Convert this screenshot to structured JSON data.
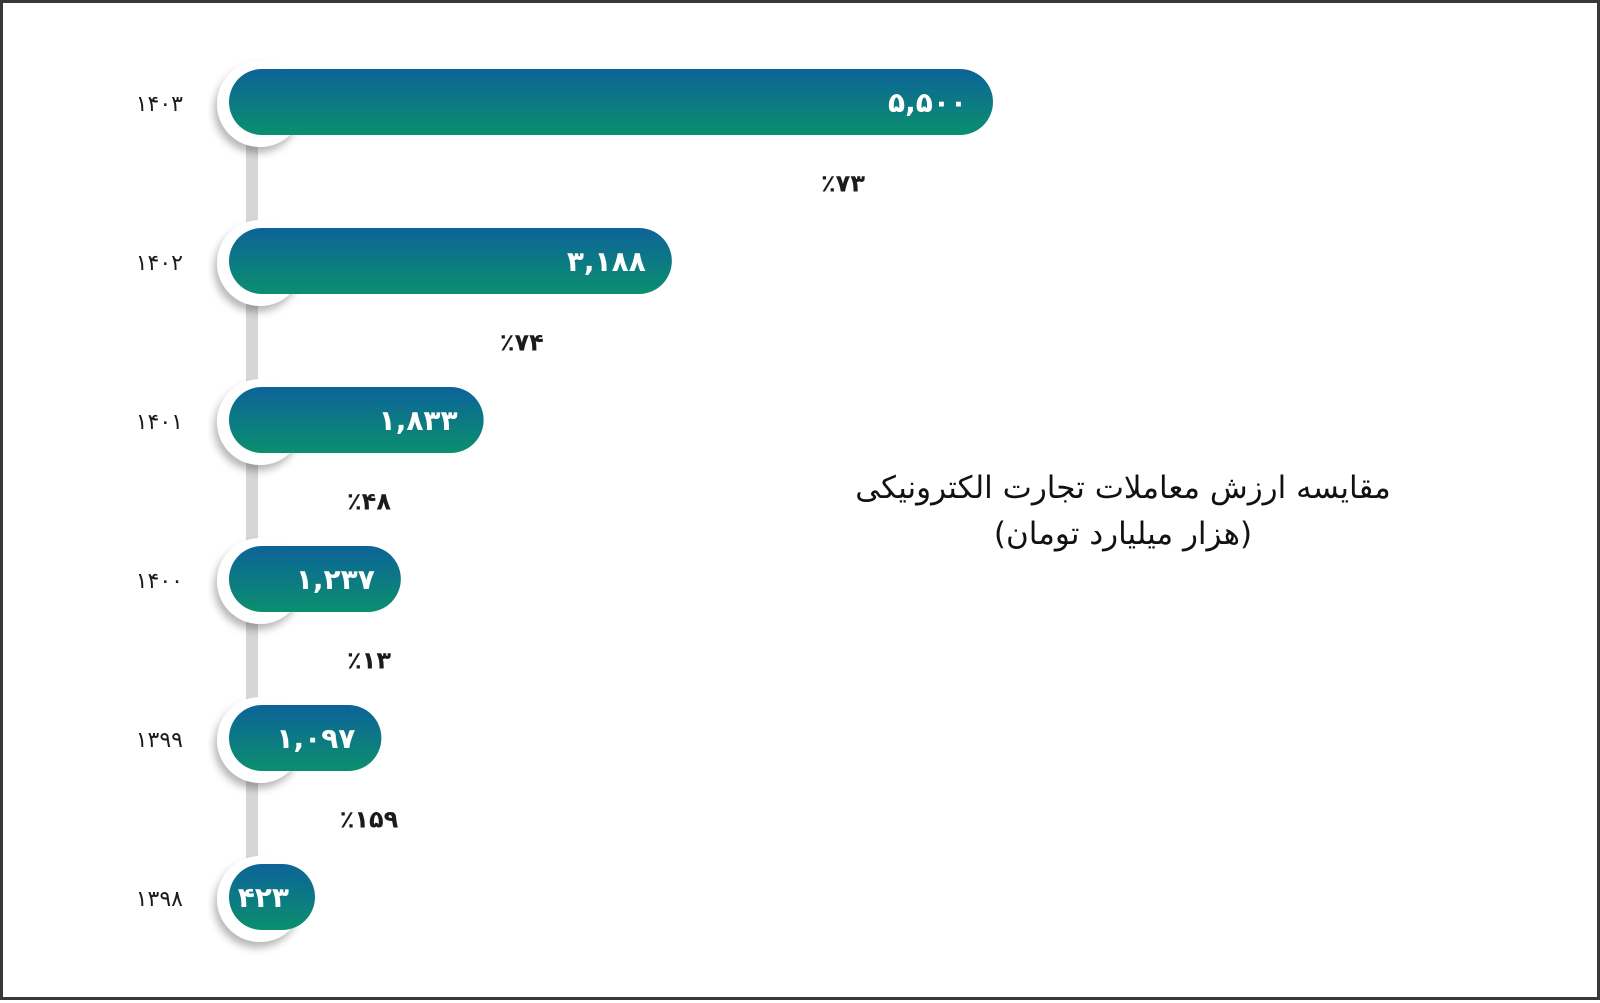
{
  "chart_data": {
    "type": "bar",
    "orientation": "horizontal",
    "title": "مقایسه ارزش معاملات تجارت الکترونیکی",
    "subtitle": "(هزار میلیارد تومان)",
    "categories": [
      "۱۴۰۳",
      "۱۴۰۲",
      "۱۴۰۱",
      "۱۴۰۰",
      "۱۳۹۹",
      "۱۳۹۸"
    ],
    "values": [
      5500,
      3188,
      1833,
      1237,
      1097,
      423
    ],
    "value_labels": [
      "۵,۵۰۰",
      "۳,۱۸۸",
      "۱,۸۳۳",
      "۱,۲۳۷",
      "۱,۰۹۷",
      "۴۲۳"
    ],
    "growth_labels": [
      "٪۷۳",
      "٪۷۴",
      "٪۴۸",
      "٪۱۳",
      "٪۱۵۹"
    ],
    "growth_values": [
      73,
      74,
      48,
      13,
      159
    ],
    "xlim": [
      0,
      5500
    ],
    "grid": false,
    "colors": {
      "bar_top": "#0d6399",
      "bar_bottom": "#0b8f6e",
      "connector": "#d6d6d6",
      "frame": "#3b3836"
    }
  }
}
